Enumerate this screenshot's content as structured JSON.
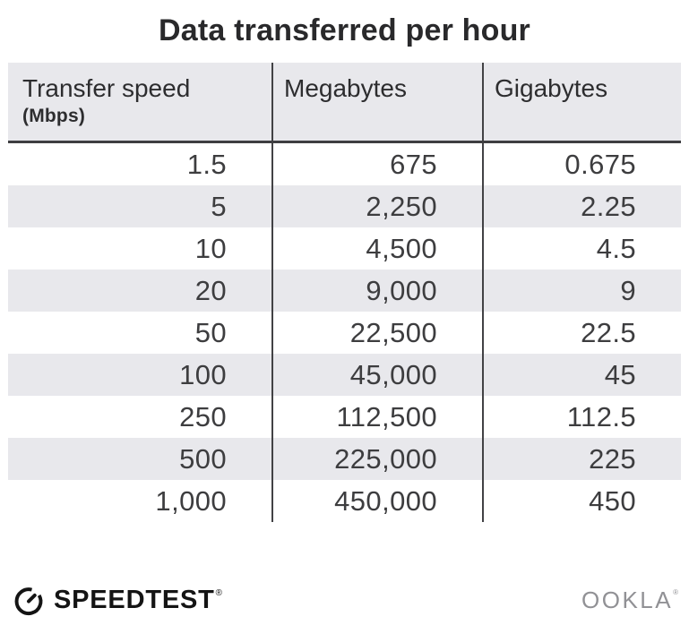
{
  "title": "Data transferred per hour",
  "table": {
    "columns": [
      {
        "label": "Transfer speed",
        "sublabel": "(Mbps)"
      },
      {
        "label": "Megabytes"
      },
      {
        "label": "Gigabytes"
      }
    ],
    "rows": [
      [
        "1.5",
        "675",
        "0.675"
      ],
      [
        "5",
        "2,250",
        "2.25"
      ],
      [
        "10",
        "4,500",
        "4.5"
      ],
      [
        "20",
        "9,000",
        "9"
      ],
      [
        "50",
        "22,500",
        "22.5"
      ],
      [
        "100",
        "45,000",
        "45"
      ],
      [
        "250",
        "112,500",
        "112.5"
      ],
      [
        "500",
        "225,000",
        "225"
      ],
      [
        "1,000",
        "450,000",
        "450"
      ]
    ]
  },
  "chart_data": {
    "type": "table",
    "title": "Data transferred per hour",
    "columns": [
      "Transfer speed (Mbps)",
      "Megabytes",
      "Gigabytes"
    ],
    "rows": [
      [
        1.5,
        675,
        0.675
      ],
      [
        5,
        2250,
        2.25
      ],
      [
        10,
        4500,
        4.5
      ],
      [
        20,
        9000,
        9
      ],
      [
        50,
        22500,
        22.5
      ],
      [
        100,
        45000,
        45
      ],
      [
        250,
        112500,
        112.5
      ],
      [
        500,
        225000,
        225
      ],
      [
        1000,
        450000,
        450
      ]
    ]
  },
  "footer": {
    "brand": "SPEEDTEST",
    "brand_trademark": "®",
    "company": "OOKLA",
    "company_trademark": "®"
  },
  "icons": {
    "speedtest_gauge": "gauge-icon"
  },
  "colors": {
    "header_bg": "#e8e8ec",
    "stripe_bg": "#e8e8ec",
    "divider": "#424245",
    "header_border": "#3e3e41",
    "title_text": "#29292b",
    "number_text": "#3d3d3f",
    "brand_black": "#141414",
    "ookla_gray": "#919195"
  }
}
